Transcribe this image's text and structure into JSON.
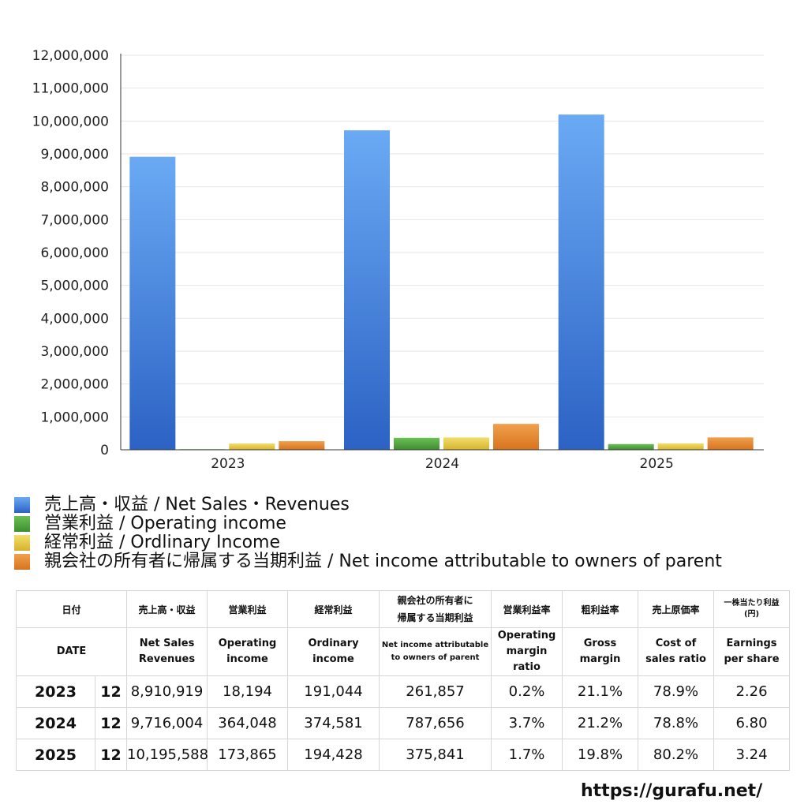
{
  "chart_data": {
    "type": "bar",
    "categories": [
      "2023",
      "2024",
      "2025"
    ],
    "series": [
      {
        "name": "売上高・収益 / Net Sales・Revenues",
        "values": [
          8910919,
          9716004,
          10195588
        ],
        "color_top": "#6aaaf4",
        "color_bottom": "#2c62c4"
      },
      {
        "name": "営業利益 / Operating income",
        "values": [
          18194,
          364048,
          173865
        ],
        "color_top": "#6cbf55",
        "color_bottom": "#3d8f2f"
      },
      {
        "name": "経常利益 / Ordlinary Income",
        "values": [
          191044,
          374581,
          194428
        ],
        "color_top": "#f2de6c",
        "color_bottom": "#d6b32c"
      },
      {
        "name": "親会社の所有者に帰属する当期利益 / Net income attributable to owners of parent",
        "values": [
          261857,
          787656,
          375841
        ],
        "color_top": "#f0a04c",
        "color_bottom": "#d8731e"
      }
    ],
    "ylim": [
      0,
      12000000
    ],
    "yticks": [
      "0",
      "1,000,000",
      "2,000,000",
      "3,000,000",
      "4,000,000",
      "5,000,000",
      "6,000,000",
      "7,000,000",
      "8,000,000",
      "9,000,000",
      "10,000,000",
      "11,000,000",
      "12,000,000"
    ],
    "grid": true,
    "legend_position": "bottom-left"
  },
  "table": {
    "header_jp": [
      "日付",
      "売上高・収益",
      "営業利益",
      "経常利益",
      "親会社の所有者に\n帰属する当期利益",
      "営業利益率",
      "粗利益率",
      "売上原価率",
      "一株当たり利益\n(円)"
    ],
    "header_en": [
      "DATE",
      "Net Sales\nRevenues",
      "Operating\nincome",
      "Ordinary\nincome",
      "Net income attributable\nto owners of parent",
      "Operating\nmargin\nratio",
      "Gross\nmargin",
      "Cost of\nsales ratio",
      "Earnings\nper share"
    ],
    "rows": [
      {
        "year": "2023",
        "month": "12",
        "sales": "8,910,919",
        "op": "18,194",
        "ord": "191,044",
        "net": "261,857",
        "opm": "0.2%",
        "gm": "21.1%",
        "cos": "78.9%",
        "eps": "2.26"
      },
      {
        "year": "2024",
        "month": "12",
        "sales": "9,716,004",
        "op": "364,048",
        "ord": "374,581",
        "net": "787,656",
        "opm": "3.7%",
        "gm": "21.2%",
        "cos": "78.8%",
        "eps": "6.80"
      },
      {
        "year": "2025",
        "month": "12",
        "sales": "10,195,588",
        "op": "173,865",
        "ord": "194,428",
        "net": "375,841",
        "opm": "1.7%",
        "gm": "19.8%",
        "cos": "80.2%",
        "eps": "3.24"
      }
    ]
  },
  "footer": {
    "url": "https://gurafu.net/"
  }
}
